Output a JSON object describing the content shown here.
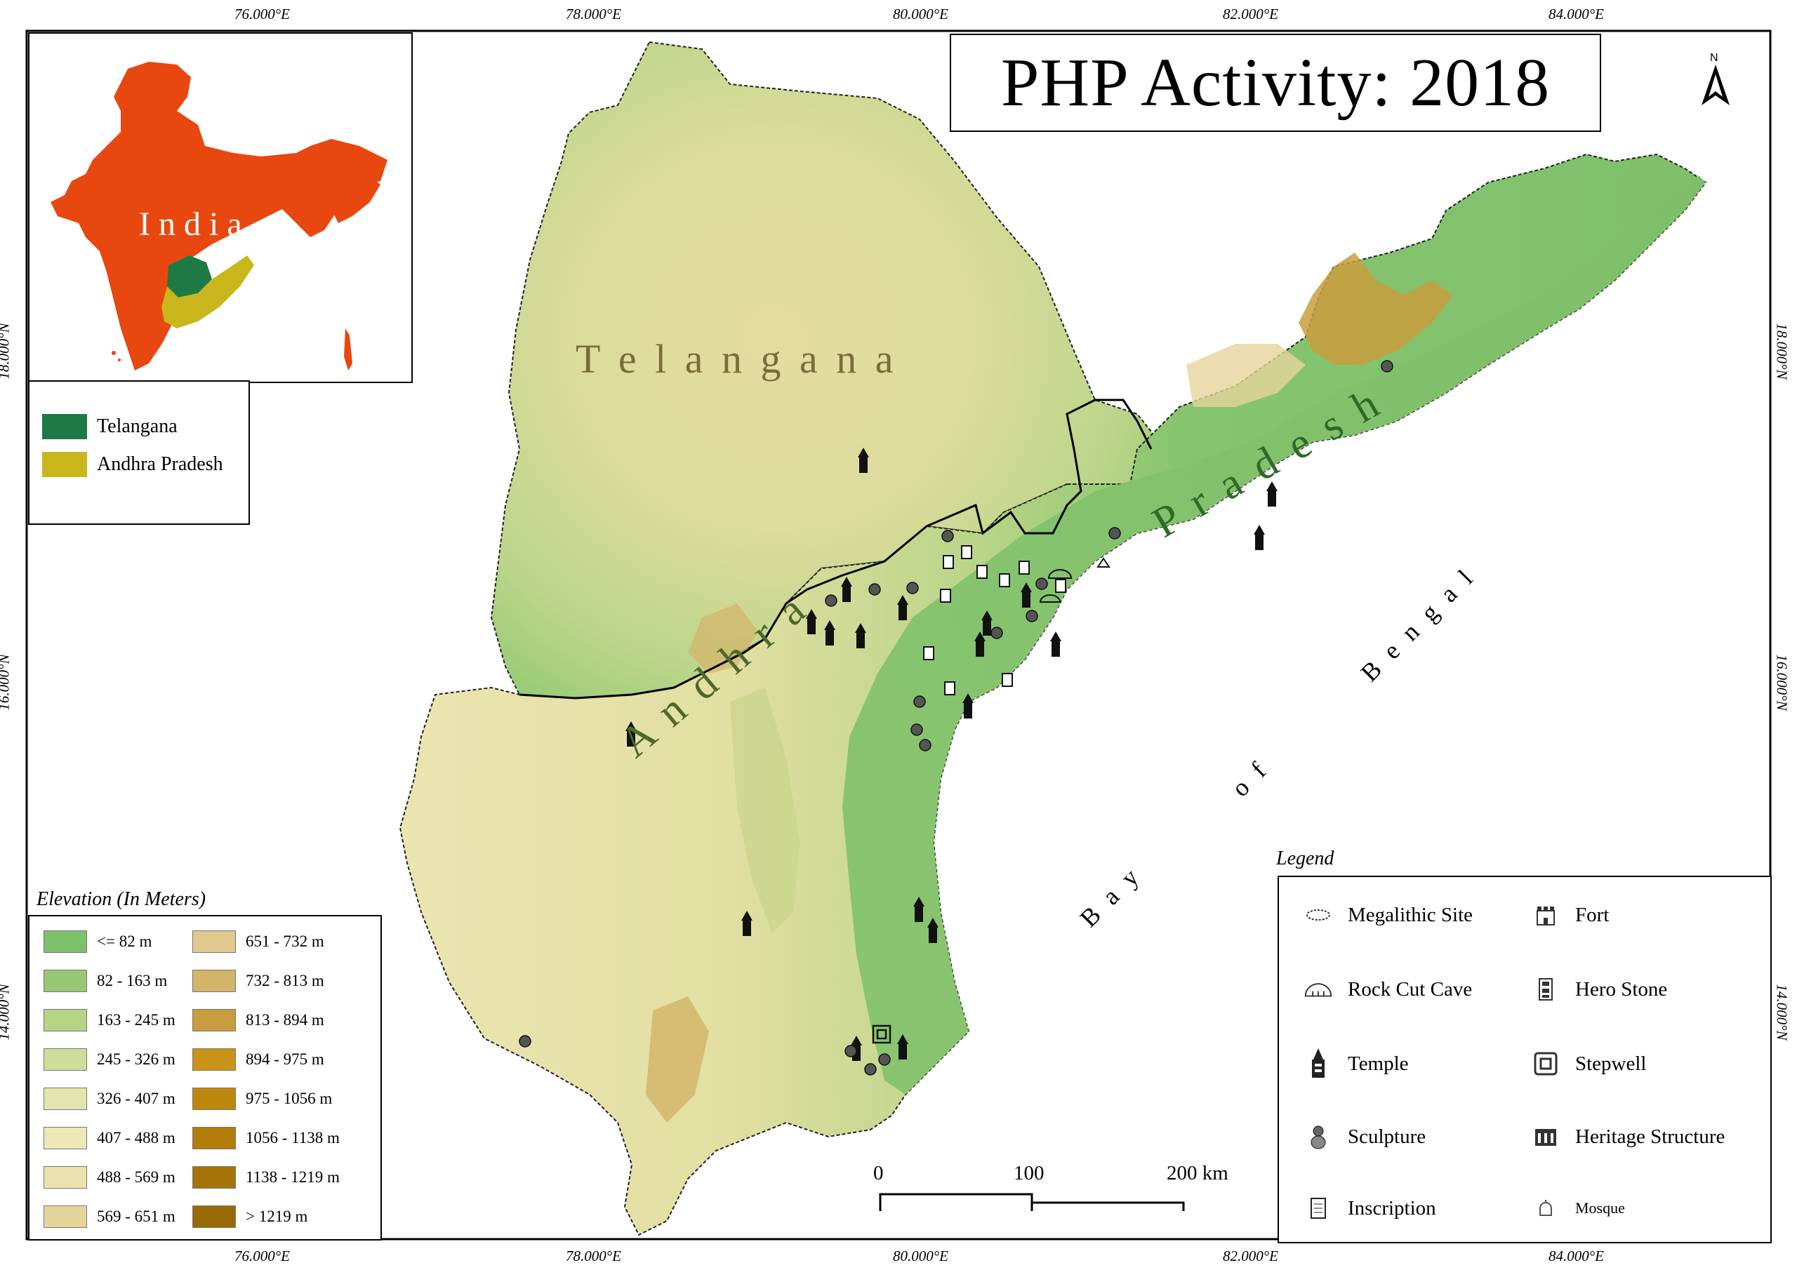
{
  "title": "PHP Activity: 2018",
  "north_arrow": {
    "label": "N",
    "icon": "north-arrow-icon"
  },
  "graticule": {
    "longitudes": [
      "76.000°E",
      "78.000°E",
      "80.000°E",
      "82.000°E",
      "84.000°E"
    ],
    "latitudes": [
      "18.000°N",
      "16.000°N",
      "14.000°N"
    ]
  },
  "inset": {
    "label": "India",
    "colors": {
      "india": "#e8470f",
      "telangana": "#1e7a44",
      "andhra_pradesh": "#c9b61d"
    }
  },
  "state_legend": {
    "items": [
      {
        "label": "Telangana",
        "color": "#1e7a44"
      },
      {
        "label": "Andhra Pradesh",
        "color": "#c9b61d"
      }
    ]
  },
  "region_labels": {
    "telangana": "T e l a n g a n a",
    "andhra": "A n d h r a",
    "pradesh": "P r a d e s h",
    "bay": "B a y",
    "of": "o f",
    "bengal": "B e n g a l"
  },
  "elevation_legend": {
    "title": "Elevation (In Meters)",
    "classes": [
      {
        "label": "<= 82 m",
        "color": "#7fc06c"
      },
      {
        "label": "82 - 163 m",
        "color": "#97c873"
      },
      {
        "label": "163 - 245 m",
        "color": "#b7d386"
      },
      {
        "label": "245 - 326 m",
        "color": "#cfdd9b"
      },
      {
        "label": "326 - 407 m",
        "color": "#e1e6ac"
      },
      {
        "label": "407 - 488 m",
        "color": "#ece9b6"
      },
      {
        "label": "488 - 569 m",
        "color": "#ebe2ae"
      },
      {
        "label": "569 - 651 m",
        "color": "#e6d59b"
      },
      {
        "label": "651 - 732 m",
        "color": "#dfc98c"
      },
      {
        "label": "732 - 813 m",
        "color": "#d3b468"
      },
      {
        "label": "813 - 894 m",
        "color": "#c99d3e"
      },
      {
        "label": "894 - 975 m",
        "color": "#c99318"
      },
      {
        "label": "975 - 1056 m",
        "color": "#bd870c"
      },
      {
        "label": "1056 - 1138 m",
        "color": "#b27d0a"
      },
      {
        "label": "1138 - 1219 m",
        "color": "#a47408"
      },
      {
        "label": "> 1219 m",
        "color": "#976a05"
      }
    ]
  },
  "legend": {
    "title": "Legend",
    "items": [
      {
        "label": "Megalithic Site",
        "icon": "megalithic-site-icon"
      },
      {
        "label": "Fort",
        "icon": "fort-icon"
      },
      {
        "label": "Rock Cut Cave",
        "icon": "rock-cut-cave-icon"
      },
      {
        "label": "Hero Stone",
        "icon": "hero-stone-icon"
      },
      {
        "label": "Temple",
        "icon": "temple-icon"
      },
      {
        "label": "Stepwell",
        "icon": "stepwell-icon"
      },
      {
        "label": "Sculpture",
        "icon": "sculpture-icon"
      },
      {
        "label": "Heritage Structure",
        "icon": "heritage-structure-icon"
      },
      {
        "label": "Inscription",
        "icon": "inscription-icon"
      },
      {
        "label": "Mosque",
        "icon": "mosque-icon"
      }
    ]
  },
  "scale_bar": {
    "labels": [
      "0",
      "100",
      "200 km"
    ]
  }
}
